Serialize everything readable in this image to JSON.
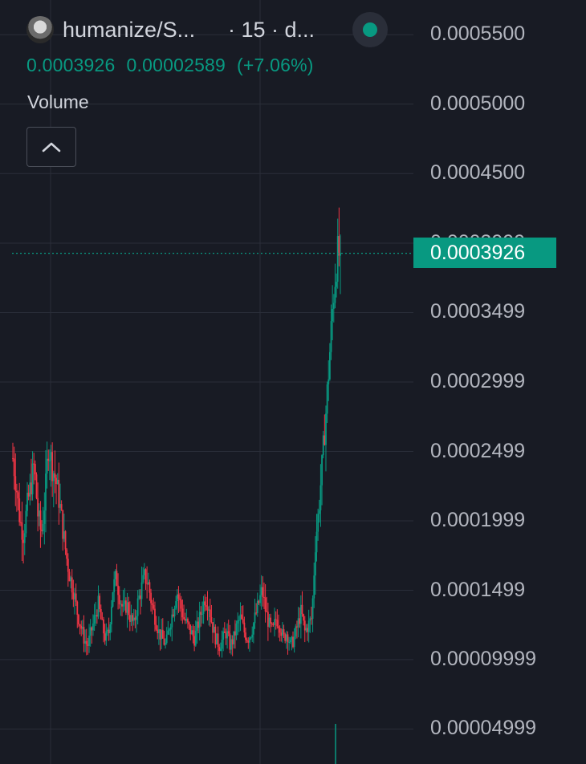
{
  "header": {
    "symbol": "humanize/S...",
    "interval": "· 15 · d...",
    "last": "0.0003926",
    "change": "0.00002589",
    "change_pct": "(+7.06%)",
    "status_color": "#089981"
  },
  "volume": {
    "label": "Volume",
    "collapse_icon": "chevron-up-icon"
  },
  "colors": {
    "background": "#181b24",
    "grid": "#2a2e39",
    "up": "#089981",
    "down": "#f23645",
    "axis_text": "#b2b5be"
  },
  "chart_data": {
    "type": "candlestick",
    "y_axis_ticks": [
      "0.0005500",
      "0.0005000",
      "0.0004500",
      "0.0003999",
      "0.0003499",
      "0.0002999",
      "0.0002499",
      "0.0001999",
      "0.0001499",
      "0.00009999",
      "0.00004999"
    ],
    "ylim": [
      2.48e-05,
      0.000575
    ],
    "last_price": 0.0003926,
    "last_price_label": "0.0003926",
    "price_path": [
      0.000245,
      0.000225,
      0.0002,
      0.00019,
      0.00021,
      0.000225,
      0.00024,
      0.000205,
      0.00019,
      0.000215,
      0.000255,
      0.00024,
      0.00023,
      0.000215,
      0.000195,
      0.000175,
      0.00016,
      0.00015,
      0.000135,
      0.000125,
      0.000115,
      0.00011,
      0.00012,
      0.00013,
      0.00014,
      0.000125,
      0.000115,
      0.00012,
      0.00015,
      0.00016,
      0.000145,
      0.000135,
      0.00014,
      0.00013,
      0.000125,
      0.00014,
      0.00015,
      0.00016,
      0.000155,
      0.00014,
      0.00013,
      0.00012,
      0.000115,
      0.00011,
      0.000125,
      0.000135,
      0.00015,
      0.00014,
      0.00013,
      0.000125,
      0.00012,
      0.000115,
      0.000125,
      0.000135,
      0.000145,
      0.00014,
      0.000125,
      0.000115,
      0.00011,
      0.000115,
      0.00012,
      0.00011,
      0.000115,
      0.000125,
      0.00013,
      0.00012,
      0.000115,
      0.00012,
      0.00013,
      0.00014,
      0.00015,
      0.000135,
      0.000125,
      0.00012,
      0.00013,
      0.000125,
      0.000115,
      0.00012,
      0.00011,
      0.000115,
      0.000125,
      0.000135,
      0.00012,
      0.000125,
      0.00013,
      0.000185,
      0.00021,
      0.000245,
      0.00028,
      0.00032,
      0.00036,
      0.00039,
      0.0003926
    ]
  }
}
